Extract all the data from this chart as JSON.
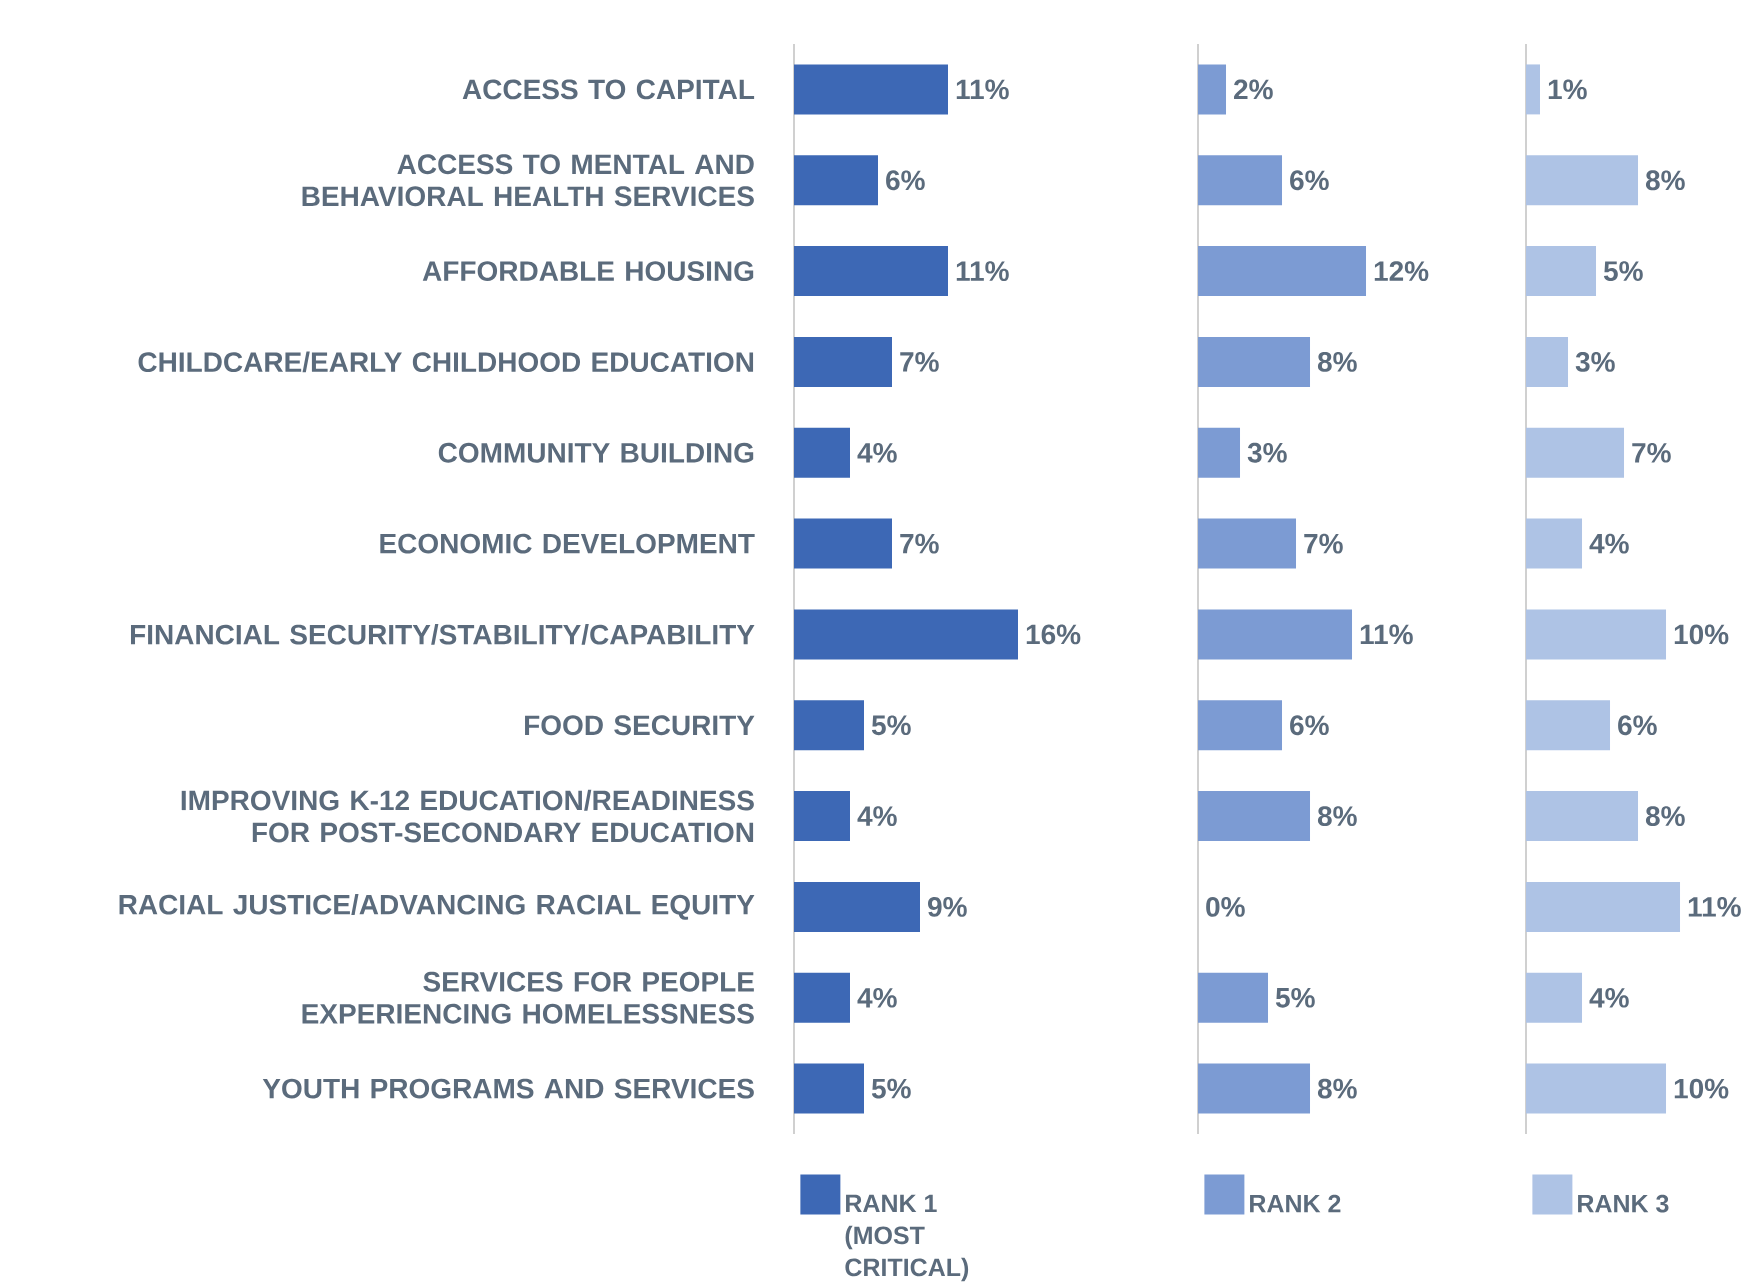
{
  "chart_data": [
    {
      "type": "bar",
      "orientation": "horizontal",
      "categories": [
        "ACCESS TO CAPITAL",
        "ACCESS TO MENTAL AND BEHAVIORAL HEALTH SERVICES",
        "AFFORDABLE HOUSING",
        "CHILDCARE/EARLY CHILDHOOD EDUCATION",
        "COMMUNITY BUILDING",
        "ECONOMIC DEVELOPMENT",
        "FINANCIAL SECURITY/STABILITY/CAPABILITY",
        "FOOD SECURITY",
        "IMPROVING K-12 EDUCATION/READINESS FOR POST-SECONDARY EDUCATION",
        "RACIAL JUSTICE/ADVANCING RACIAL EQUITY",
        "SERVICES FOR PEOPLE EXPERIENCING HOMELESSNESS",
        "YOUTH PROGRAMS AND SERVICES"
      ],
      "series": [
        {
          "name": "RANK 1 (MOST CRITICAL)",
          "color": "#3d68b5",
          "values": [
            11,
            6,
            11,
            7,
            4,
            7,
            16,
            5,
            4,
            9,
            4,
            5
          ],
          "value_labels": [
            "11%",
            "6%",
            "11%",
            "7%",
            "4%",
            "7%",
            "16%",
            "5%",
            "4%",
            "9%",
            "4%",
            "5%"
          ]
        }
      ],
      "tick_labels": "y",
      "legend": "bottom"
    },
    {
      "type": "bar",
      "orientation": "horizontal",
      "categories": [
        null,
        null,
        null,
        null,
        null,
        null,
        null,
        null,
        null,
        null,
        null,
        null
      ],
      "series": [
        {
          "name": "RANK 2",
          "color": "#7c9bd3",
          "values": [
            2,
            6,
            12,
            8,
            3,
            7,
            11,
            6,
            8,
            0,
            5,
            8
          ],
          "value_labels": [
            "2%",
            "6%",
            "12%",
            "8%",
            "3%",
            "7%",
            "11%",
            "6%",
            "8%",
            "0%",
            "5%",
            "8%"
          ]
        }
      ],
      "tick_labels": false,
      "legend": "bottom"
    },
    {
      "type": "bar",
      "orientation": "horizontal",
      "categories": [
        null,
        null,
        null,
        null,
        null,
        null,
        null,
        null,
        null,
        null,
        null,
        null
      ],
      "series": [
        {
          "name": "RANK 3",
          "color": "#aec3e5",
          "values": [
            1,
            8,
            5,
            3,
            7,
            4,
            10,
            6,
            8,
            11,
            4,
            10
          ],
          "value_labels": [
            "1%",
            "8%",
            "5%",
            "3%",
            "7%",
            "4%",
            "10%",
            "6%",
            "8%",
            "11%",
            "4%",
            "10%"
          ]
        }
      ],
      "tick_labels": false,
      "legend": "bottom"
    }
  ]
}
